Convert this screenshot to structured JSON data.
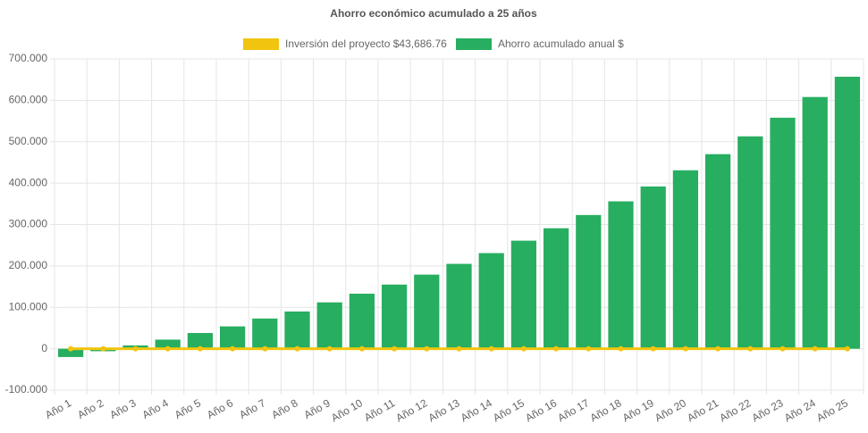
{
  "chart_data": {
    "type": "bar",
    "title": "Ahorro económico acumulado a 25 años",
    "categories": [
      "Año 1",
      "Año 2",
      "Año 3",
      "Año 4",
      "Año 5",
      "Año 6",
      "Año 7",
      "Año 8",
      "Año 9",
      "Año 10",
      "Año 11",
      "Año 12",
      "Año 13",
      "Año 14",
      "Año 15",
      "Año 16",
      "Año 17",
      "Año 18",
      "Año 19",
      "Año 20",
      "Año 21",
      "Año 22",
      "Año 23",
      "Año 24",
      "Año 25"
    ],
    "series": [
      {
        "name": "Inversión del proyecto $43,686.76",
        "type": "line",
        "color": "#f1c40f",
        "values": [
          0,
          0,
          0,
          0,
          0,
          0,
          0,
          0,
          0,
          0,
          0,
          0,
          0,
          0,
          0,
          0,
          0,
          0,
          0,
          0,
          0,
          0,
          0,
          0,
          0
        ]
      },
      {
        "name": "Ahorro acumulado anual $",
        "type": "bar",
        "color": "#27ae60",
        "values": [
          -20000,
          -6000,
          8000,
          22000,
          38000,
          54000,
          73000,
          90000,
          112000,
          133000,
          155000,
          179000,
          205000,
          231000,
          261000,
          291000,
          323000,
          356000,
          392000,
          431000,
          470000,
          513000,
          558000,
          608000,
          657000
        ]
      }
    ],
    "ylim": [
      -100000,
      700000
    ],
    "yticks": [
      {
        "value": -100000,
        "label": "-100.000"
      },
      0,
      {
        "value": 100000,
        "label": "100.000"
      },
      {
        "value": 200000,
        "label": "200.000"
      },
      {
        "value": 300000,
        "label": "300.000"
      },
      {
        "value": 400000,
        "label": "400.000"
      },
      {
        "value": 500000,
        "label": "500.000"
      },
      {
        "value": 600000,
        "label": "600.000"
      },
      {
        "value": 700000,
        "label": "700.000"
      }
    ],
    "grid": true
  }
}
